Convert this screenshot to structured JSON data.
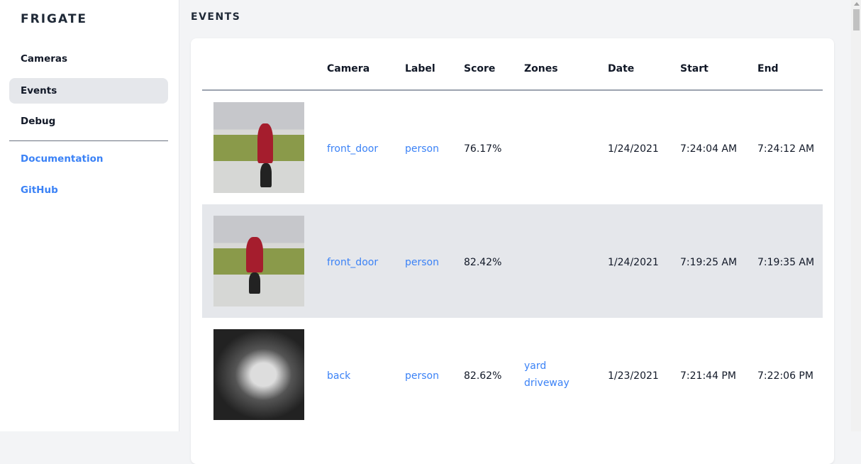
{
  "sidebar": {
    "brand": "FRIGATE",
    "items": [
      {
        "label": "Cameras"
      },
      {
        "label": "Events",
        "active": true
      },
      {
        "label": "Debug"
      }
    ],
    "links": [
      {
        "label": "Documentation"
      },
      {
        "label": "GitHub"
      }
    ]
  },
  "main": {
    "title": "EVENTS",
    "columns": [
      "",
      "Camera",
      "Label",
      "Score",
      "Zones",
      "Date",
      "Start",
      "End"
    ],
    "rows": [
      {
        "camera": "front_door",
        "label": "person",
        "score": "76.17%",
        "zones": [
          "",
          ""
        ],
        "date": "1/24/2021",
        "start": "7:24:04 AM",
        "end": "7:24:12 AM"
      },
      {
        "camera": "front_door",
        "label": "person",
        "score": "82.42%",
        "zones": [
          "",
          ""
        ],
        "date": "1/24/2021",
        "start": "7:19:25 AM",
        "end": "7:19:35 AM"
      },
      {
        "camera": "back",
        "label": "person",
        "score": "82.62%",
        "zones": [
          "yard",
          "driveway"
        ],
        "date": "1/23/2021",
        "start": "7:21:44 PM",
        "end": "7:22:06 PM"
      }
    ]
  },
  "colors": {
    "accent": "#3b82f6",
    "active_bg": "#e5e7eb",
    "page_bg": "#f3f4f6"
  }
}
